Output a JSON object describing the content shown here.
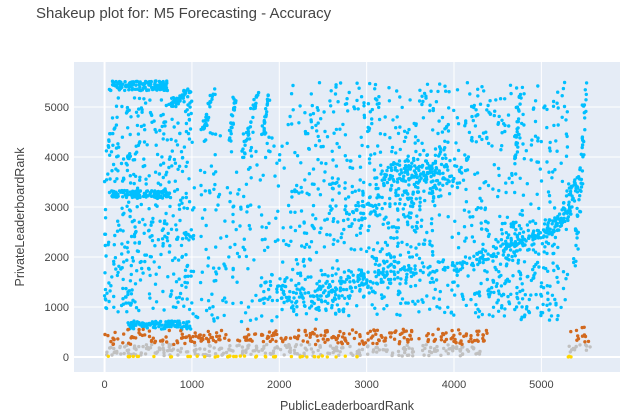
{
  "chart_data": {
    "type": "scatter",
    "title": "Shakeup plot for: M5 Forecasting - Accuracy",
    "xlabel": "PublicLeaderboardRank",
    "ylabel": "PrivateLeaderboardRank",
    "xlim": [
      -350,
      5900
    ],
    "ylim": [
      -300,
      5900
    ],
    "xticks": [
      0,
      1000,
      2000,
      3000,
      4000,
      5000
    ],
    "yticks": [
      0,
      1000,
      2000,
      3000,
      4000,
      5000
    ],
    "grid": true,
    "legend": "none",
    "plot_background": "#e5ecf6",
    "total_teams": 5558,
    "medal_tiers": [
      {
        "tier": "gold",
        "color": "#ffd700",
        "private_rank_max": 20
      },
      {
        "tier": "silver",
        "color": "#c0c0c0",
        "private_rank_max": 250
      },
      {
        "tier": "bronze",
        "color": "#d2691e",
        "private_rank_max": 560
      },
      {
        "tier": "none",
        "color": "#00bfff",
        "private_rank_max": 5558
      }
    ],
    "clusters": [
      {
        "tier": "gold",
        "kind": "box",
        "x": [
          0,
          2900
        ],
        "y": [
          0,
          20
        ],
        "count": 45
      },
      {
        "tier": "gold",
        "kind": "box",
        "x": [
          5300,
          5360
        ],
        "y": [
          0,
          20
        ],
        "count": 3
      },
      {
        "tier": "silver",
        "kind": "box",
        "x": [
          0,
          4300
        ],
        "y": [
          20,
          250
        ],
        "count": 260
      },
      {
        "tier": "silver",
        "kind": "box",
        "x": [
          5300,
          5560
        ],
        "y": [
          100,
          250
        ],
        "count": 12
      },
      {
        "tier": "bronze",
        "kind": "box",
        "x": [
          0,
          4400
        ],
        "y": [
          250,
          560
        ],
        "count": 270
      },
      {
        "tier": "bronze",
        "kind": "box",
        "x": [
          5300,
          5550
        ],
        "y": [
          300,
          600
        ],
        "count": 12
      },
      {
        "tier": "none",
        "kind": "band",
        "x": [
          50,
          720
        ],
        "y": [
          5330,
          5520
        ],
        "count": 130
      },
      {
        "tier": "none",
        "kind": "band",
        "x": [
          50,
          750
        ],
        "y": [
          3190,
          3330
        ],
        "count": 120
      },
      {
        "tier": "none",
        "kind": "band",
        "x": [
          250,
          1000
        ],
        "y": [
          550,
          720
        ],
        "count": 110
      },
      {
        "tier": "none",
        "kind": "line",
        "from": [
          750,
          5000
        ],
        "to": [
          980,
          5350
        ],
        "spread": 60,
        "count": 40
      },
      {
        "tier": "none",
        "kind": "line",
        "from": [
          1120,
          4500
        ],
        "to": [
          1250,
          5300
        ],
        "spread": 50,
        "count": 30
      },
      {
        "tier": "none",
        "kind": "line",
        "from": [
          1430,
          4300
        ],
        "to": [
          1500,
          5300
        ],
        "spread": 50,
        "count": 25
      },
      {
        "tier": "none",
        "kind": "line",
        "from": [
          1580,
          4000
        ],
        "to": [
          1750,
          5300
        ],
        "spread": 50,
        "count": 35
      },
      {
        "tier": "none",
        "kind": "line",
        "from": [
          1800,
          4200
        ],
        "to": [
          1880,
          5300
        ],
        "spread": 40,
        "count": 25
      },
      {
        "tier": "none",
        "kind": "line",
        "from": [
          4700,
          3900
        ],
        "to": [
          4760,
          5250
        ],
        "spread": 40,
        "count": 25
      },
      {
        "tier": "none",
        "kind": "line",
        "from": [
          5380,
          1800
        ],
        "to": [
          5520,
          5500
        ],
        "spread": 50,
        "count": 50
      },
      {
        "tier": "none",
        "kind": "curve",
        "points": [
          [
            3700,
            1700
          ],
          [
            4300,
            2000
          ],
          [
            4700,
            2250
          ],
          [
            5000,
            2450
          ],
          [
            5200,
            2700
          ],
          [
            5320,
            3000
          ],
          [
            5390,
            3600
          ]
        ],
        "spread": 120,
        "count": 200
      },
      {
        "tier": "none",
        "kind": "curve",
        "points": [
          [
            1800,
            1500
          ],
          [
            2300,
            1100
          ],
          [
            2700,
            1400
          ],
          [
            3100,
            1600
          ],
          [
            3500,
            1650
          ]
        ],
        "spread": 250,
        "count": 220
      },
      {
        "tier": "none",
        "kind": "blob",
        "center": [
          3600,
          3650
        ],
        "spread": [
          400,
          300
        ],
        "count": 180
      },
      {
        "tier": "none",
        "kind": "blob",
        "center": [
          3100,
          3000
        ],
        "spread": [
          500,
          300
        ],
        "count": 80
      },
      {
        "tier": "none",
        "kind": "box",
        "x": [
          0,
          1000
        ],
        "y": [
          900,
          5200
        ],
        "count": 420
      },
      {
        "tier": "none",
        "kind": "box",
        "x": [
          1000,
          2100
        ],
        "y": [
          700,
          4500
        ],
        "count": 180
      },
      {
        "tier": "none",
        "kind": "box",
        "x": [
          2100,
          5300
        ],
        "y": [
          800,
          5500
        ],
        "count": 900
      },
      {
        "tier": "none",
        "kind": "box",
        "x": [
          4200,
          5200
        ],
        "y": [
          700,
          2600
        ],
        "count": 120
      }
    ]
  }
}
